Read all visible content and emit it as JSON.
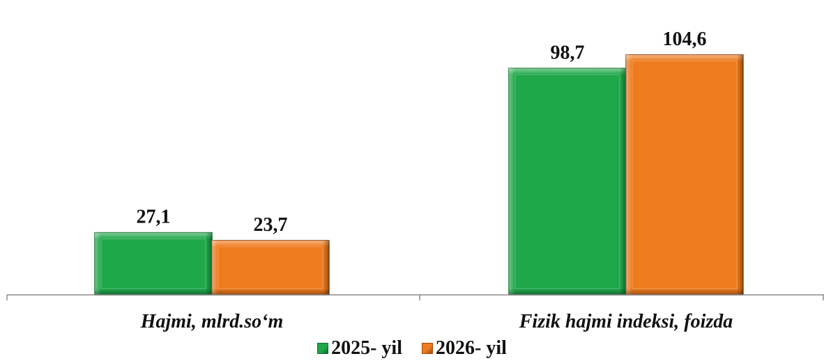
{
  "chart_data": {
    "type": "bar",
    "categories": [
      "Hajmi, mlrd.so‘m",
      "Fizik hajmi indeksi, foizda"
    ],
    "series": [
      {
        "name": "2025- yil",
        "values": [
          27.1,
          98.7
        ],
        "labels": [
          "27,1",
          "98,7"
        ],
        "color": "#1FA84A",
        "edge": "#0E6E2B"
      },
      {
        "name": "2026- yil",
        "values": [
          23.7,
          104.6
        ],
        "labels": [
          "23,7",
          "104,6"
        ],
        "color": "#EE7B1E",
        "edge": "#9E4A0C"
      }
    ],
    "legend_position": "bottom",
    "grid": false
  }
}
